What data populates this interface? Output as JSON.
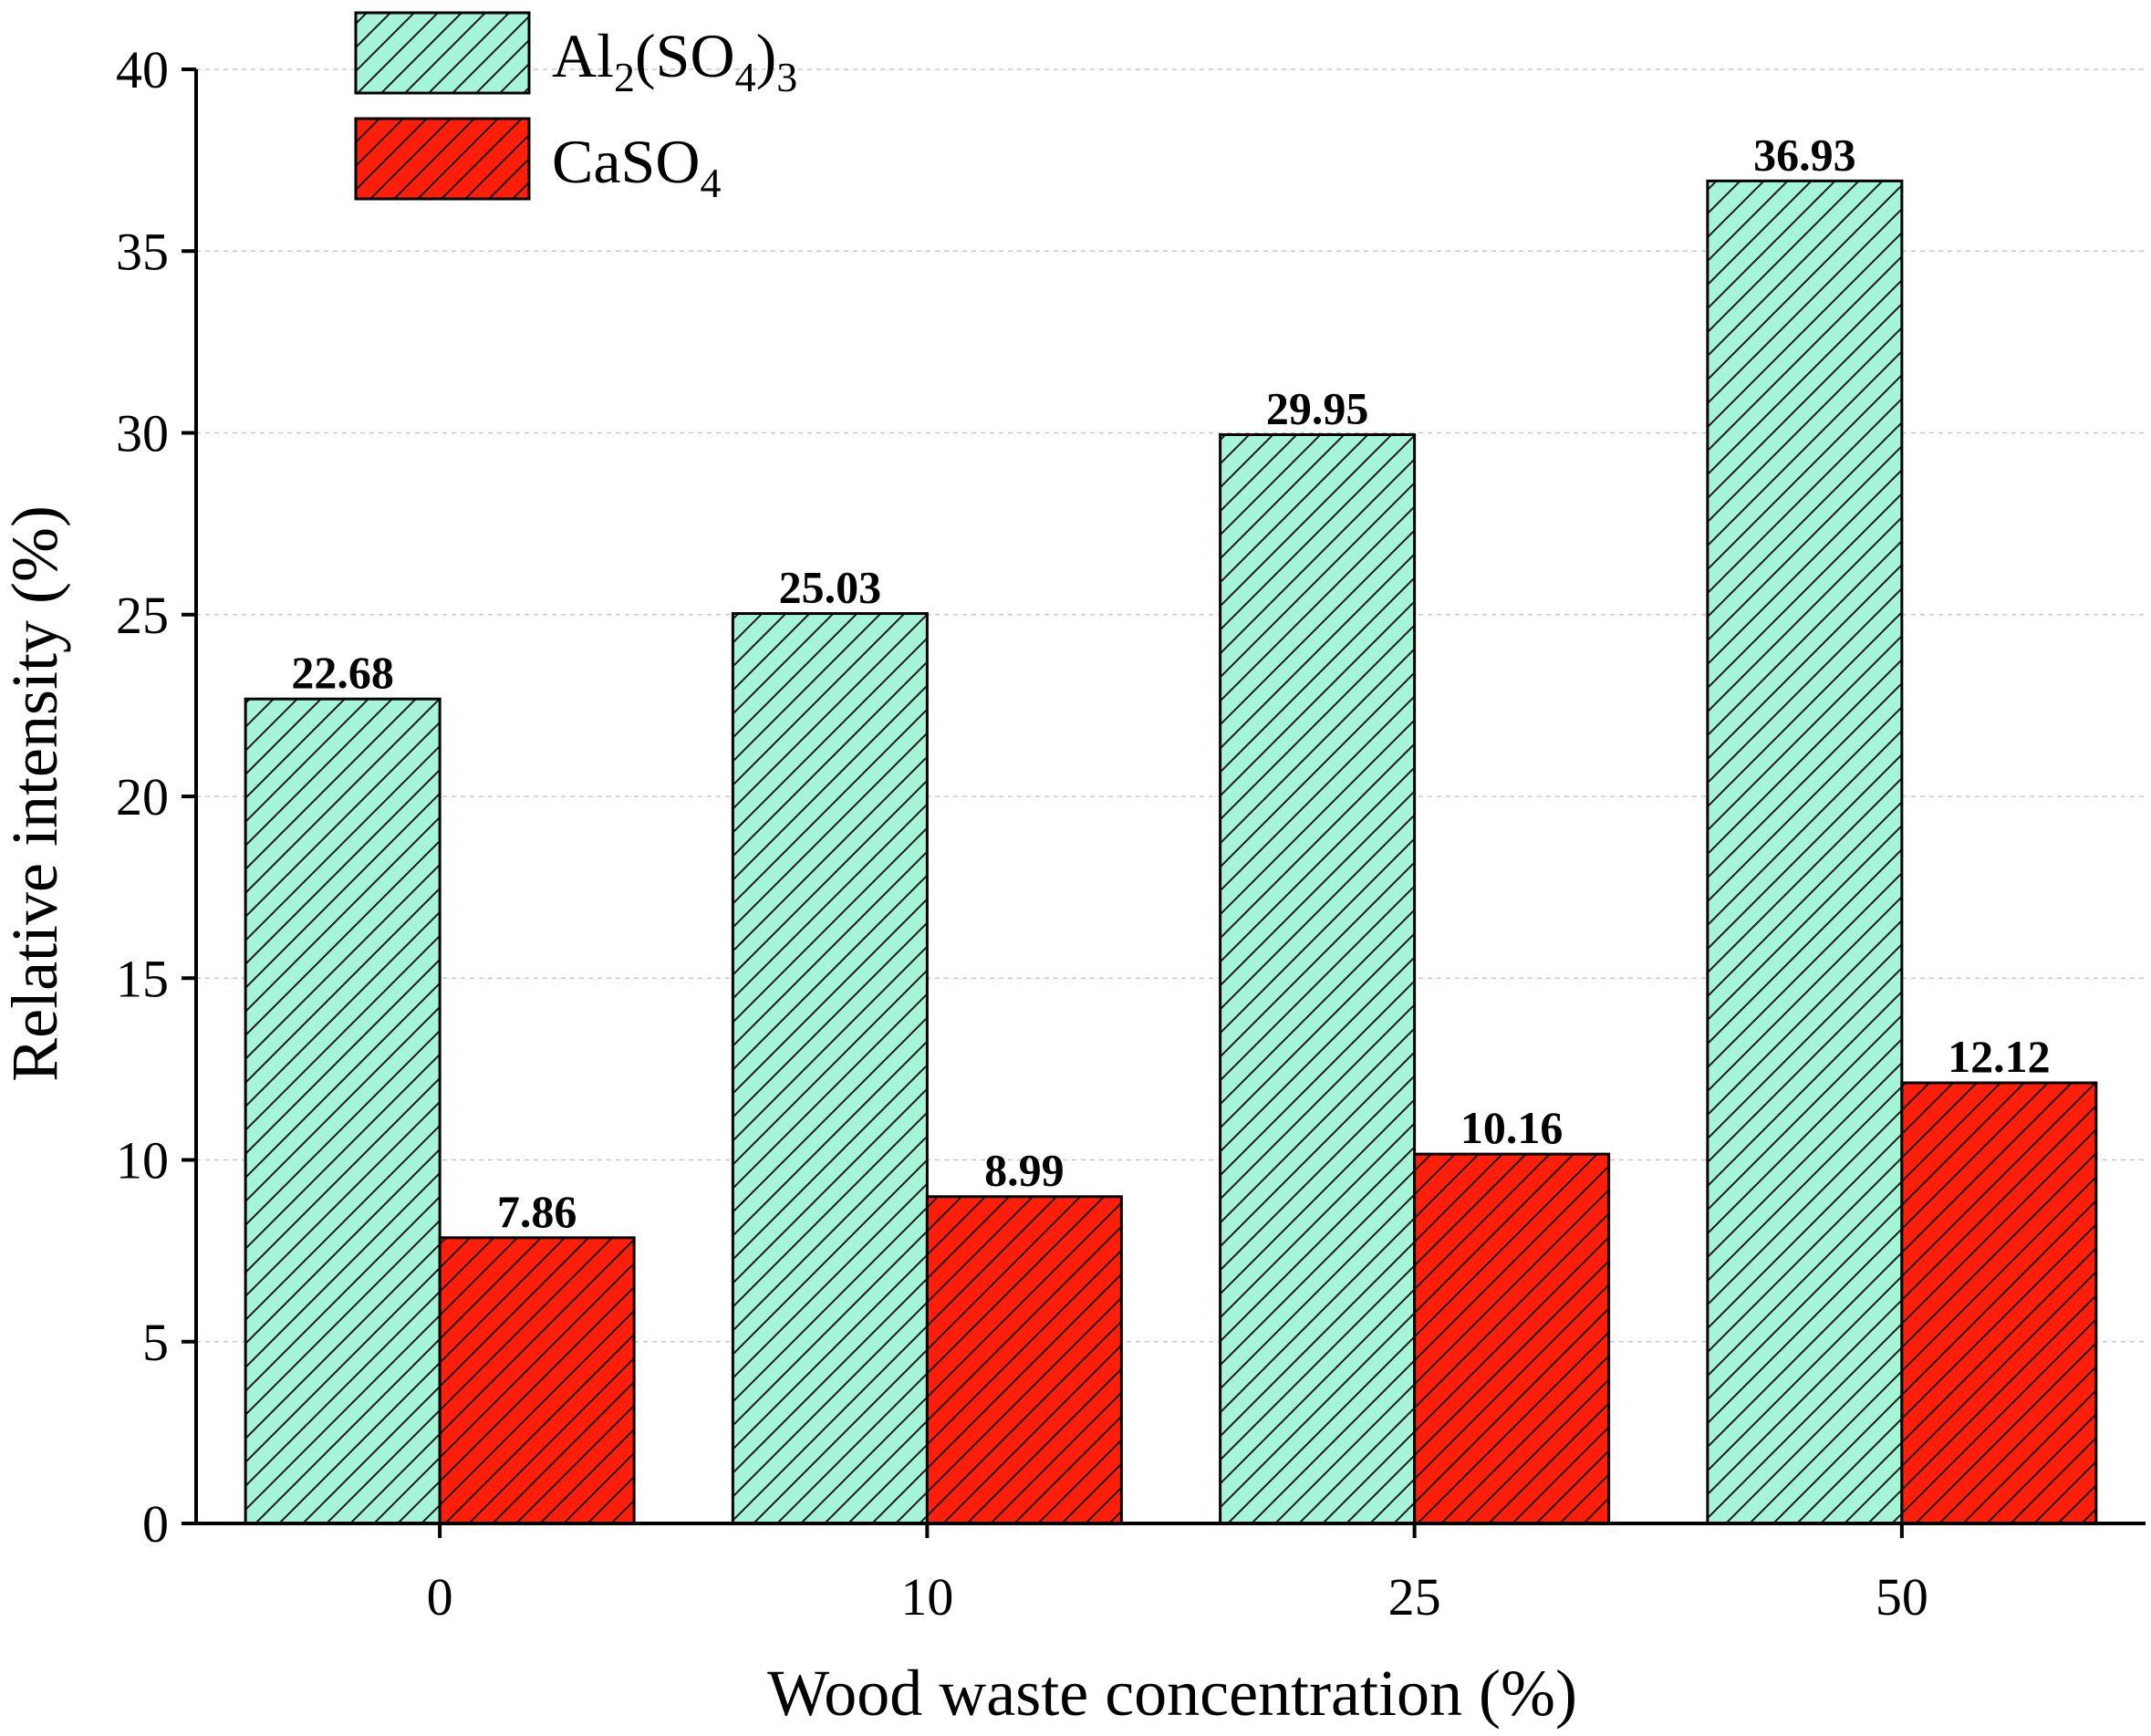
{
  "chart_data": {
    "type": "bar",
    "categories": [
      "0",
      "10",
      "25",
      "50"
    ],
    "series": [
      {
        "name": "Al2(SO4)3",
        "values": [
          22.68,
          25.03,
          29.95,
          36.93
        ],
        "value_labels": [
          "22.68",
          "25.03",
          "29.95",
          "36.93"
        ],
        "color": "#a6f5d8",
        "pattern": "diagonal-hatch"
      },
      {
        "name": "CaSO4",
        "values": [
          7.86,
          8.99,
          10.16,
          12.12
        ],
        "value_labels": [
          "7.86",
          "8.99",
          "10.16",
          "12.12"
        ],
        "color": "#ff1e0a",
        "pattern": "diagonal-hatch"
      }
    ],
    "legend_series": [
      {
        "base": "Al",
        "sub1": "2",
        "mid": "(SO",
        "sub2": "4",
        "close": ")",
        "sub3": "3"
      },
      {
        "base": "CaSO",
        "sub1": "4"
      }
    ],
    "xlabel": "Wood waste concentration (%)",
    "ylabel": "Relative intensity (%)",
    "ylim": [
      0,
      40
    ],
    "yticks": [
      "0",
      "5",
      "10",
      "15",
      "20",
      "25",
      "30",
      "35",
      "40"
    ],
    "grid": "horizontal-dashed",
    "legend_position": "top-left"
  }
}
